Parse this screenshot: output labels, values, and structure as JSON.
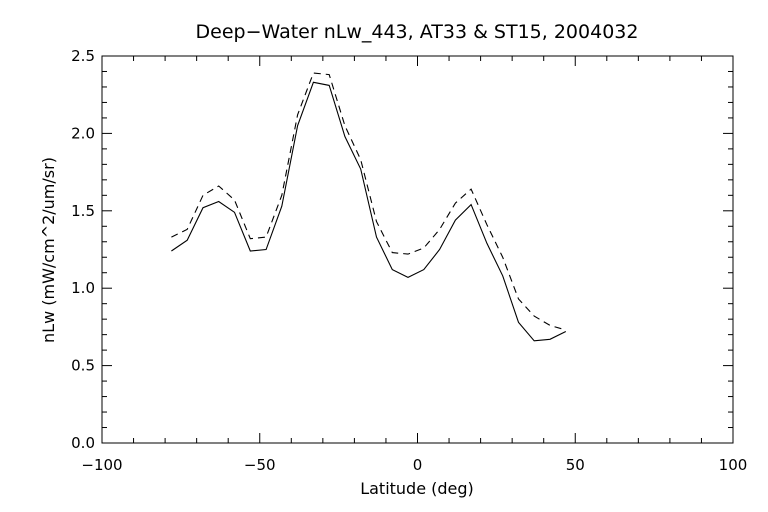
{
  "chart_data": {
    "type": "line",
    "title": "Deep−Water nLw_443, AT33 & ST15, 2004032",
    "xlabel": "Latitude (deg)",
    "ylabel": "nLw (mW/cm^2/um/sr)",
    "xlim": [
      -100,
      100
    ],
    "ylim": [
      0,
      2.5
    ],
    "xticks": [
      -100,
      -50,
      0,
      50,
      100
    ],
    "xtick_labels": [
      "−100",
      "−50",
      "0",
      "50",
      "100"
    ],
    "yticks": [
      0,
      0.5,
      1,
      1.5,
      2,
      2.5
    ],
    "ytick_labels": [
      "0.0",
      "0.5",
      "1.0",
      "1.5",
      "2.0",
      "2.5"
    ],
    "x_minor_step": 10,
    "y_minor_step": 0.1,
    "grid": false,
    "legend": "none",
    "series": [
      {
        "style": "solid",
        "x": [
          -78,
          -73,
          -68,
          -63,
          -58,
          -53,
          -48,
          -43,
          -38,
          -33,
          -28,
          -23,
          -18,
          -13,
          -8,
          -3,
          2,
          7,
          12,
          17,
          22,
          27,
          32,
          37,
          42,
          47
        ],
        "values": [
          1.24,
          1.31,
          1.52,
          1.56,
          1.49,
          1.24,
          1.25,
          1.53,
          2.05,
          2.33,
          2.31,
          1.98,
          1.77,
          1.33,
          1.12,
          1.07,
          1.12,
          1.25,
          1.44,
          1.54,
          1.29,
          1.08,
          0.78,
          0.66,
          0.67,
          0.72
        ]
      },
      {
        "style": "dashed",
        "x": [
          -78,
          -73,
          -68,
          -63,
          -58,
          -53,
          -48,
          -43,
          -38,
          -33,
          -28,
          -23,
          -18,
          -13,
          -8,
          -3,
          2,
          7,
          12,
          17,
          22,
          27,
          32,
          37,
          42,
          47
        ],
        "values": [
          1.33,
          1.38,
          1.6,
          1.66,
          1.57,
          1.32,
          1.33,
          1.6,
          2.12,
          2.39,
          2.38,
          2.05,
          1.83,
          1.43,
          1.23,
          1.22,
          1.26,
          1.38,
          1.55,
          1.64,
          1.41,
          1.2,
          0.93,
          0.82,
          0.76,
          0.73
        ]
      }
    ]
  }
}
